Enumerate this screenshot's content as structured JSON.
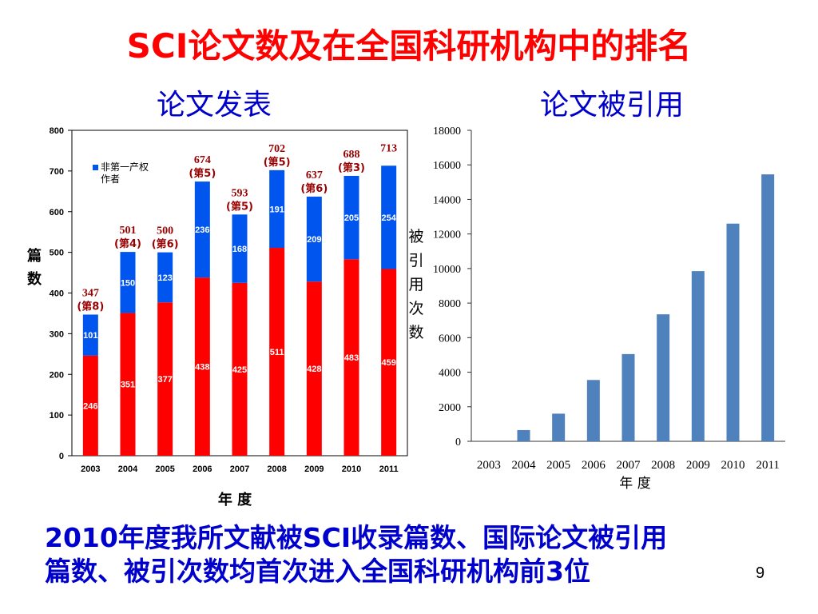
{
  "slide": {
    "title": "SCI论文数及在全国科研机构中的排名",
    "footer_lines": [
      "2010年度我所文献被SCI收录篇数、国际论文被引用",
      "篇数、被引次数均首次进入全国科研机构前3位"
    ],
    "page_number": "9"
  },
  "colors": {
    "title": "#ff0000",
    "subtitle": "#0000cc",
    "series_first_author": "#ff0000",
    "series_non_first": "#0055ee",
    "citations_bar": "#4f81bd",
    "annotation": "#990000"
  },
  "chart_data": [
    {
      "type": "bar",
      "stacked": true,
      "title": "论文发表",
      "categories": [
        "2003",
        "2004",
        "2005",
        "2006",
        "2007",
        "2008",
        "2009",
        "2010",
        "2011"
      ],
      "series": [
        {
          "values": [
            246,
            351,
            377,
            438,
            425,
            511,
            428,
            483,
            459
          ],
          "color": "#ff0000"
        },
        {
          "name": "非第一产权作者",
          "values": [
            101,
            150,
            123,
            236,
            168,
            191,
            209,
            205,
            254
          ],
          "color": "#0055ee"
        }
      ],
      "totals": [
        "347",
        "501",
        "500",
        "674",
        "593",
        "702",
        "637",
        "688",
        "713"
      ],
      "ranks": [
        "(第8)",
        "(第4)",
        "(第6)",
        "(第5)",
        "(第5)",
        "(第5)",
        "(第6)",
        "(第3)",
        ""
      ],
      "xlabel": "年 度",
      "ylabel": "篇数",
      "ylim": [
        0,
        800
      ],
      "yticks": [
        "0",
        "100",
        "200",
        "300",
        "400",
        "500",
        "600",
        "700",
        "800"
      ],
      "legend_label": "非第一产权作者",
      "legend_position": "top-left",
      "grid": false
    },
    {
      "type": "bar",
      "title": "论文被引用",
      "categories": [
        "2003",
        "2004",
        "2005",
        "2006",
        "2007",
        "2008",
        "2009",
        "2010",
        "2011"
      ],
      "values": [
        0,
        650,
        1600,
        3550,
        5050,
        7350,
        9850,
        12600,
        15450
      ],
      "xlabel": "年 度",
      "ylabel": "被引用次数",
      "ylim": [
        0,
        18000
      ],
      "yticks": [
        "0",
        "2000",
        "4000",
        "6000",
        "8000",
        "10000",
        "12000",
        "14000",
        "16000",
        "18000"
      ],
      "grid": false
    }
  ]
}
